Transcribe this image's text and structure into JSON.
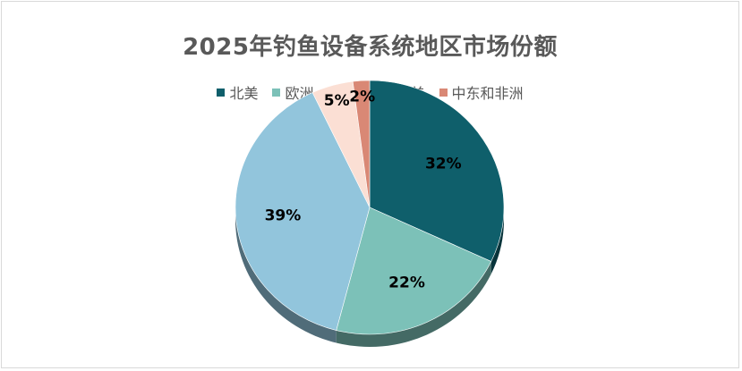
{
  "chart_data": {
    "type": "pie",
    "title": "2025年钓鱼设备系统地区市场份额",
    "legend_position": "top",
    "style": "3d",
    "categories": [
      "北美",
      "欧洲",
      "亚太",
      "拉美",
      "中东和非洲"
    ],
    "values": [
      32,
      22,
      39,
      5,
      2
    ],
    "value_labels": [
      "32%",
      "22%",
      "39%",
      "5%",
      "2%"
    ],
    "colors": [
      "#0f5f6b",
      "#7cc1b8",
      "#92c5dc",
      "#fbdfd4",
      "#d98875"
    ]
  }
}
